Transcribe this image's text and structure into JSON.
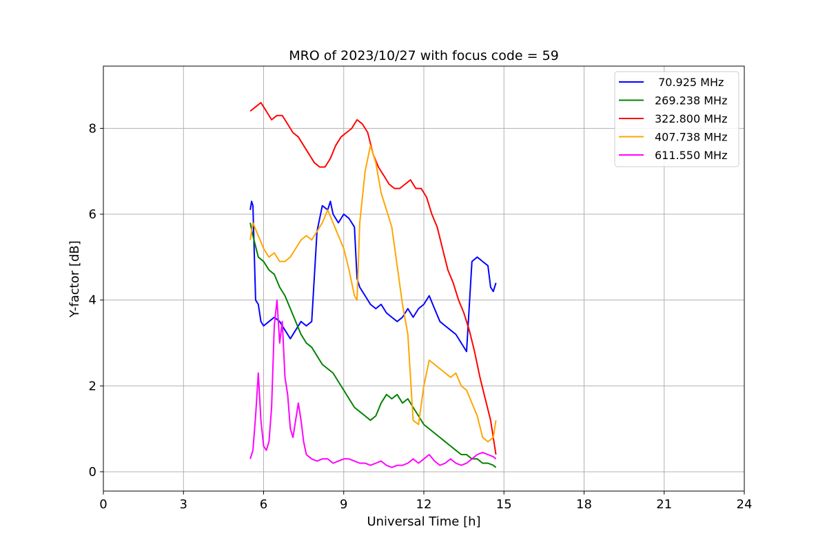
{
  "chart_data": {
    "type": "line",
    "title": "MRO of 2023/10/27 with focus code = 59",
    "xlabel": "Universal Time [h]",
    "ylabel": "Y-factor [dB]",
    "xlim": [
      0,
      24
    ],
    "ylim": [
      -0.45,
      9.45
    ],
    "xticks": [
      0,
      3,
      6,
      9,
      12,
      15,
      18,
      21,
      24
    ],
    "yticks": [
      0,
      2,
      4,
      6,
      8
    ],
    "grid": true,
    "legend_position": "top-right",
    "series": [
      {
        "name": " 70.925 MHz",
        "color": "#0000ff",
        "x": [
          5.5,
          5.55,
          5.6,
          5.7,
          5.8,
          5.9,
          6.0,
          6.2,
          6.4,
          6.6,
          6.8,
          7.0,
          7.2,
          7.4,
          7.6,
          7.8,
          8.0,
          8.2,
          8.4,
          8.5,
          8.6,
          8.8,
          9.0,
          9.2,
          9.4,
          9.5,
          9.6,
          9.8,
          10.0,
          10.2,
          10.4,
          10.6,
          10.8,
          11.0,
          11.2,
          11.4,
          11.6,
          11.8,
          12.0,
          12.2,
          12.4,
          12.6,
          12.8,
          13.0,
          13.2,
          13.4,
          13.6,
          13.8,
          14.0,
          14.2,
          14.4,
          14.5,
          14.6,
          14.7
        ],
        "y": [
          6.1,
          6.3,
          6.2,
          4.0,
          3.9,
          3.5,
          3.4,
          3.5,
          3.6,
          3.5,
          3.3,
          3.1,
          3.3,
          3.5,
          3.4,
          3.5,
          5.6,
          6.2,
          6.1,
          6.3,
          6.0,
          5.8,
          6.0,
          5.9,
          5.7,
          4.5,
          4.3,
          4.1,
          3.9,
          3.8,
          3.9,
          3.7,
          3.6,
          3.5,
          3.6,
          3.8,
          3.6,
          3.8,
          3.9,
          4.1,
          3.8,
          3.5,
          3.4,
          3.3,
          3.2,
          3.0,
          2.8,
          4.9,
          5.0,
          4.9,
          4.8,
          4.3,
          4.2,
          4.4
        ]
      },
      {
        "name": "269.238 MHz",
        "color": "#008000",
        "x": [
          5.5,
          5.6,
          5.8,
          6.0,
          6.2,
          6.4,
          6.6,
          6.8,
          7.0,
          7.2,
          7.4,
          7.6,
          7.8,
          8.0,
          8.2,
          8.4,
          8.6,
          8.8,
          9.0,
          9.2,
          9.4,
          9.6,
          9.8,
          10.0,
          10.2,
          10.4,
          10.6,
          10.8,
          11.0,
          11.2,
          11.4,
          11.6,
          11.8,
          12.0,
          12.2,
          12.4,
          12.6,
          12.8,
          13.0,
          13.2,
          13.4,
          13.6,
          13.8,
          14.0,
          14.2,
          14.4,
          14.6,
          14.7
        ],
        "y": [
          5.8,
          5.5,
          5.0,
          4.9,
          4.7,
          4.6,
          4.3,
          4.1,
          3.8,
          3.5,
          3.2,
          3.0,
          2.9,
          2.7,
          2.5,
          2.4,
          2.3,
          2.1,
          1.9,
          1.7,
          1.5,
          1.4,
          1.3,
          1.2,
          1.3,
          1.6,
          1.8,
          1.7,
          1.8,
          1.6,
          1.7,
          1.5,
          1.3,
          1.1,
          1.0,
          0.9,
          0.8,
          0.7,
          0.6,
          0.5,
          0.4,
          0.4,
          0.3,
          0.3,
          0.2,
          0.2,
          0.15,
          0.1
        ]
      },
      {
        "name": "322.800 MHz",
        "color": "#ff0000",
        "x": [
          5.5,
          5.7,
          5.9,
          6.1,
          6.3,
          6.5,
          6.7,
          6.9,
          7.1,
          7.3,
          7.5,
          7.7,
          7.9,
          8.1,
          8.3,
          8.5,
          8.7,
          8.9,
          9.1,
          9.3,
          9.5,
          9.7,
          9.9,
          10.1,
          10.3,
          10.5,
          10.7,
          10.9,
          11.1,
          11.3,
          11.5,
          11.7,
          11.9,
          12.1,
          12.3,
          12.5,
          12.7,
          12.9,
          13.1,
          13.3,
          13.5,
          13.7,
          13.9,
          14.1,
          14.3,
          14.5,
          14.7
        ],
        "y": [
          8.4,
          8.5,
          8.6,
          8.4,
          8.2,
          8.3,
          8.3,
          8.1,
          7.9,
          7.8,
          7.6,
          7.4,
          7.2,
          7.1,
          7.1,
          7.3,
          7.6,
          7.8,
          7.9,
          8.0,
          8.2,
          8.1,
          7.9,
          7.4,
          7.1,
          6.9,
          6.7,
          6.6,
          6.6,
          6.7,
          6.8,
          6.6,
          6.6,
          6.4,
          6.0,
          5.7,
          5.2,
          4.7,
          4.4,
          4.0,
          3.7,
          3.3,
          2.8,
          2.2,
          1.7,
          1.2,
          0.4
        ]
      },
      {
        "name": "407.738 MHz",
        "color": "#ffa500",
        "x": [
          5.5,
          5.6,
          5.8,
          6.0,
          6.2,
          6.4,
          6.6,
          6.8,
          7.0,
          7.2,
          7.4,
          7.6,
          7.8,
          8.0,
          8.2,
          8.4,
          8.6,
          8.8,
          9.0,
          9.2,
          9.4,
          9.5,
          9.6,
          9.8,
          10.0,
          10.2,
          10.4,
          10.6,
          10.8,
          11.0,
          11.2,
          11.4,
          11.6,
          11.8,
          12.0,
          12.2,
          12.4,
          12.6,
          12.8,
          13.0,
          13.2,
          13.4,
          13.6,
          13.8,
          14.0,
          14.2,
          14.4,
          14.6,
          14.7
        ],
        "y": [
          5.4,
          5.8,
          5.5,
          5.2,
          5.0,
          5.1,
          4.9,
          4.9,
          5.0,
          5.2,
          5.4,
          5.5,
          5.4,
          5.6,
          5.8,
          6.1,
          5.8,
          5.5,
          5.2,
          4.7,
          4.1,
          4.0,
          5.8,
          7.0,
          7.6,
          7.2,
          6.5,
          6.1,
          5.7,
          4.8,
          3.9,
          3.2,
          1.2,
          1.1,
          2.0,
          2.6,
          2.5,
          2.4,
          2.3,
          2.2,
          2.3,
          2.0,
          1.9,
          1.6,
          1.3,
          0.8,
          0.7,
          0.8,
          1.2
        ]
      },
      {
        "name": "611.550 MHz",
        "color": "#ff00ff",
        "x": [
          5.5,
          5.6,
          5.7,
          5.8,
          5.9,
          6.0,
          6.1,
          6.2,
          6.3,
          6.4,
          6.5,
          6.6,
          6.7,
          6.8,
          6.9,
          7.0,
          7.1,
          7.2,
          7.3,
          7.4,
          7.5,
          7.6,
          7.8,
          8.0,
          8.2,
          8.4,
          8.6,
          8.8,
          9.0,
          9.2,
          9.4,
          9.6,
          9.8,
          10.0,
          10.2,
          10.4,
          10.6,
          10.8,
          11.0,
          11.2,
          11.4,
          11.6,
          11.8,
          12.0,
          12.2,
          12.4,
          12.6,
          12.8,
          13.0,
          13.2,
          13.4,
          13.6,
          13.8,
          14.0,
          14.2,
          14.4,
          14.6,
          14.7
        ],
        "y": [
          0.3,
          0.5,
          1.3,
          2.3,
          1.2,
          0.6,
          0.5,
          0.7,
          1.5,
          3.4,
          4.0,
          3.0,
          3.5,
          2.2,
          1.8,
          1.0,
          0.8,
          1.2,
          1.6,
          1.2,
          0.7,
          0.4,
          0.3,
          0.25,
          0.3,
          0.3,
          0.2,
          0.25,
          0.3,
          0.3,
          0.25,
          0.2,
          0.2,
          0.15,
          0.2,
          0.25,
          0.15,
          0.1,
          0.15,
          0.15,
          0.2,
          0.3,
          0.2,
          0.3,
          0.4,
          0.25,
          0.15,
          0.2,
          0.3,
          0.2,
          0.15,
          0.2,
          0.3,
          0.4,
          0.45,
          0.4,
          0.35,
          0.3
        ]
      }
    ]
  }
}
